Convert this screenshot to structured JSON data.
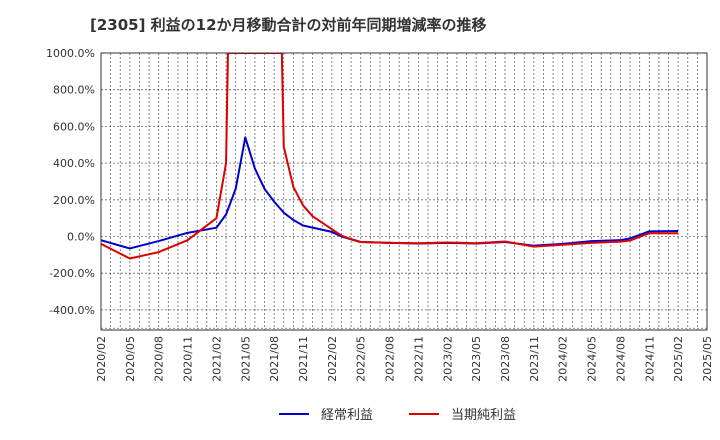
{
  "chart_data": {
    "type": "line",
    "title": "[2305]  利益の12か月移動合計の対前年同期増減率の推移",
    "xlabel": "",
    "ylabel": "",
    "ylim": [
      -520,
      1000
    ],
    "y_ticks": [
      1000,
      800,
      600,
      400,
      200,
      0,
      -200,
      -400
    ],
    "y_tick_labels": [
      "1000.0%",
      "800.0%",
      "600.0%",
      "400.0%",
      "200.0%",
      "0.0%",
      "-200.0%",
      "-400.0%"
    ],
    "x_tick_labels": [
      "2020/02",
      "2020/05",
      "2020/08",
      "2020/11",
      "2021/02",
      "2021/05",
      "2021/08",
      "2021/11",
      "2022/02",
      "2022/05",
      "2022/08",
      "2022/11",
      "2023/02",
      "2023/05",
      "2023/08",
      "2023/11",
      "2024/02",
      "2024/05",
      "2024/08",
      "2024/11",
      "2025/02",
      "2025/05"
    ],
    "x_months_start": "2020/02",
    "grid": true,
    "legend_position": "bottom-center",
    "series": [
      {
        "name": "経常利益",
        "color": "#0000cc",
        "points": [
          [
            0,
            -20
          ],
          [
            3,
            -65
          ],
          [
            6,
            -25
          ],
          [
            9,
            20
          ],
          [
            12,
            48
          ],
          [
            13,
            120
          ],
          [
            14,
            260
          ],
          [
            15,
            540
          ],
          [
            16,
            370
          ],
          [
            17,
            260
          ],
          [
            18,
            190
          ],
          [
            19,
            130
          ],
          [
            20,
            90
          ],
          [
            21,
            60
          ],
          [
            24,
            25
          ],
          [
            25,
            0
          ],
          [
            27,
            -30
          ],
          [
            30,
            -35
          ],
          [
            33,
            -38
          ],
          [
            36,
            -35
          ],
          [
            39,
            -38
          ],
          [
            42,
            -30
          ],
          [
            45,
            -50
          ],
          [
            48,
            -40
          ],
          [
            51,
            -25
          ],
          [
            54,
            -20
          ],
          [
            55,
            -10
          ],
          [
            57,
            28
          ],
          [
            60,
            30
          ]
        ]
      },
      {
        "name": "当期純利益",
        "color": "#dd0000",
        "points": [
          [
            0,
            -40
          ],
          [
            3,
            -120
          ],
          [
            6,
            -85
          ],
          [
            9,
            -20
          ],
          [
            12,
            100
          ],
          [
            13,
            400
          ],
          [
            13.2,
            1000
          ],
          [
            18.8,
            1000
          ],
          [
            19,
            490
          ],
          [
            20,
            270
          ],
          [
            21,
            170
          ],
          [
            22,
            110
          ],
          [
            24,
            40
          ],
          [
            25,
            5
          ],
          [
            26,
            -15
          ],
          [
            27,
            -30
          ],
          [
            30,
            -35
          ],
          [
            33,
            -37
          ],
          [
            36,
            -33
          ],
          [
            39,
            -37
          ],
          [
            42,
            -27
          ],
          [
            45,
            -55
          ],
          [
            48,
            -45
          ],
          [
            51,
            -35
          ],
          [
            54,
            -28
          ],
          [
            55,
            -22
          ],
          [
            57,
            18
          ],
          [
            60,
            18
          ]
        ]
      }
    ]
  }
}
